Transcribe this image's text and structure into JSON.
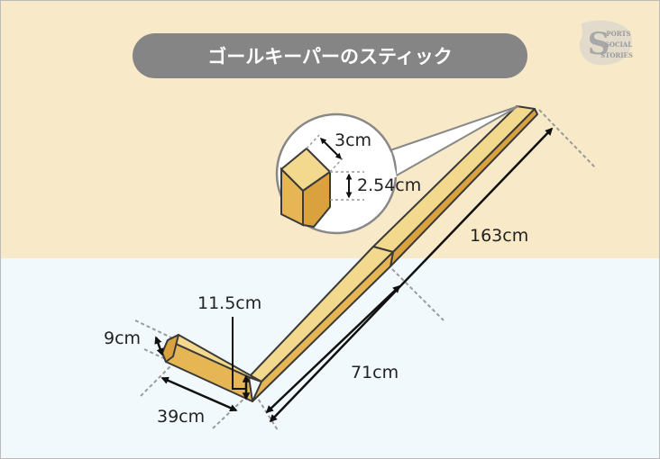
{
  "title": "ゴールキーパーのスティック",
  "logo": {
    "letter": "S",
    "line1": "PORTS",
    "line2": "SOCIAL",
    "line3": "STORIES"
  },
  "dimensions": {
    "total_length": "163cm",
    "shaft_lower_length": "71cm",
    "blade_length": "39cm",
    "blade_height": "9cm",
    "paddle_height": "11.5cm",
    "shaft_width": "3cm",
    "shaft_thickness": "2.54cm"
  },
  "colors": {
    "top_background": "#f8e9c8",
    "bottom_background": "#f2f9fd",
    "title_pill": "#858585",
    "stick_fill": "#e6b654",
    "stick_outline": "#3a3a3a",
    "dashed_line": "#9a9a9a"
  }
}
